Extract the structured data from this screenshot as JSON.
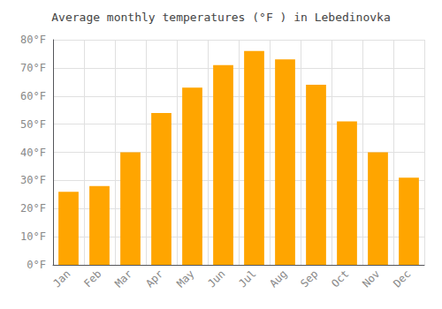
{
  "chart_data": {
    "type": "bar",
    "title": "Average monthly temperatures (°F ) in Lebedinovka",
    "categories": [
      "Jan",
      "Feb",
      "Mar",
      "Apr",
      "May",
      "Jun",
      "Jul",
      "Aug",
      "Sep",
      "Oct",
      "Nov",
      "Dec"
    ],
    "values": [
      26,
      28,
      40,
      54,
      63,
      71,
      76,
      73,
      64,
      51,
      40,
      31
    ],
    "color": "#FFA500",
    "ylim": [
      0,
      80
    ],
    "yticks": [
      {
        "value": 0,
        "label": "0°F"
      },
      {
        "value": 10,
        "label": "10°F"
      },
      {
        "value": 20,
        "label": "20°F"
      },
      {
        "value": 30,
        "label": "30°F"
      },
      {
        "value": 40,
        "label": "40°F"
      },
      {
        "value": 50,
        "label": "50°F"
      },
      {
        "value": 60,
        "label": "60°F"
      },
      {
        "value": 70,
        "label": "70°F"
      },
      {
        "value": 80,
        "label": "80°F"
      }
    ],
    "grid": true
  }
}
